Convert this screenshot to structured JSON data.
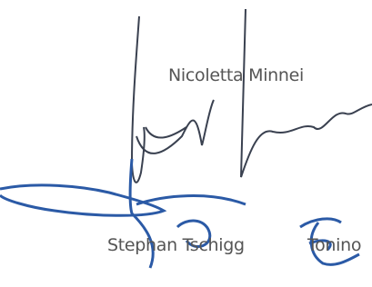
{
  "signatures": [
    {
      "name": "Nicoletta Minnei"
    },
    {
      "name": "Stephan Tschigg"
    },
    {
      "name": "Tonino"
    }
  ]
}
